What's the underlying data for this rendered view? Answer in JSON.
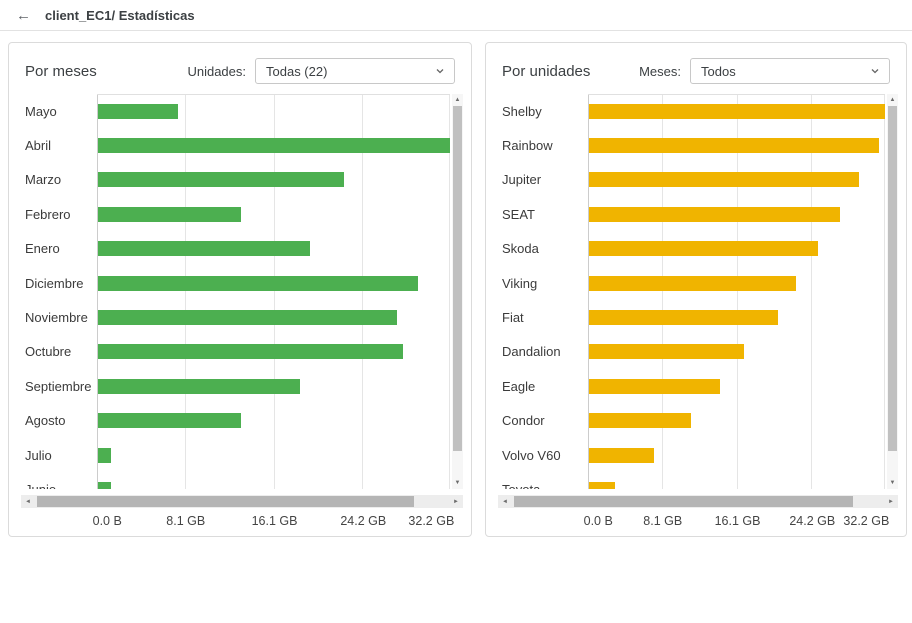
{
  "header": {
    "title": "client_EC1/ Estadísticas"
  },
  "icons": {
    "back": "←",
    "chevron_down": "chevron-down",
    "scroll_up": "▲",
    "scroll_down": "▼",
    "scroll_left": "◄",
    "scroll_right": "►"
  },
  "colors": {
    "green": "#4caf50",
    "yellow": "#f0b400"
  },
  "panels": [
    {
      "title": "Por meses",
      "filter_label": "Unidades:",
      "filter_value": "Todas (22)"
    },
    {
      "title": "Por unidades",
      "filter_label": "Meses:",
      "filter_value": "Todos"
    }
  ],
  "chart_data": [
    {
      "type": "bar",
      "orientation": "horizontal",
      "title": "Por meses",
      "categories": [
        "Mayo",
        "Abril",
        "Marzo",
        "Febrero",
        "Enero",
        "Diciembre",
        "Noviembre",
        "Octubre",
        "Septiembre",
        "Agosto",
        "Julio",
        "Junio"
      ],
      "values": [
        7.3,
        32.2,
        22.4,
        13.0,
        19.3,
        29.2,
        27.3,
        27.8,
        18.4,
        13.0,
        1.2,
        1.2
      ],
      "unit": "GB",
      "xlim": [
        0,
        32.2
      ],
      "ticks": [
        "0.0 B",
        "8.1 GB",
        "16.1 GB",
        "24.2 GB",
        "32.2 GB"
      ],
      "bar_color": "#4caf50",
      "grid": true,
      "legend": "none"
    },
    {
      "type": "bar",
      "orientation": "horizontal",
      "title": "Por unidades",
      "categories": [
        "Shelby",
        "Rainbow",
        "Jupiter",
        "SEAT",
        "Skoda",
        "Viking",
        "Fiat",
        "Dandalion",
        "Eagle",
        "Condor",
        "Volvo V60",
        "Toyota"
      ],
      "values": [
        32.2,
        31.4,
        29.3,
        27.2,
        24.8,
        22.4,
        20.5,
        16.8,
        14.2,
        11.1,
        7.1,
        2.8
      ],
      "unit": "GB",
      "xlim": [
        0,
        32.2
      ],
      "ticks": [
        "0.0 B",
        "8.1 GB",
        "16.1 GB",
        "24.2 GB",
        "32.2 GB"
      ],
      "bar_color": "#f0b400",
      "grid": true,
      "legend": "none"
    }
  ]
}
